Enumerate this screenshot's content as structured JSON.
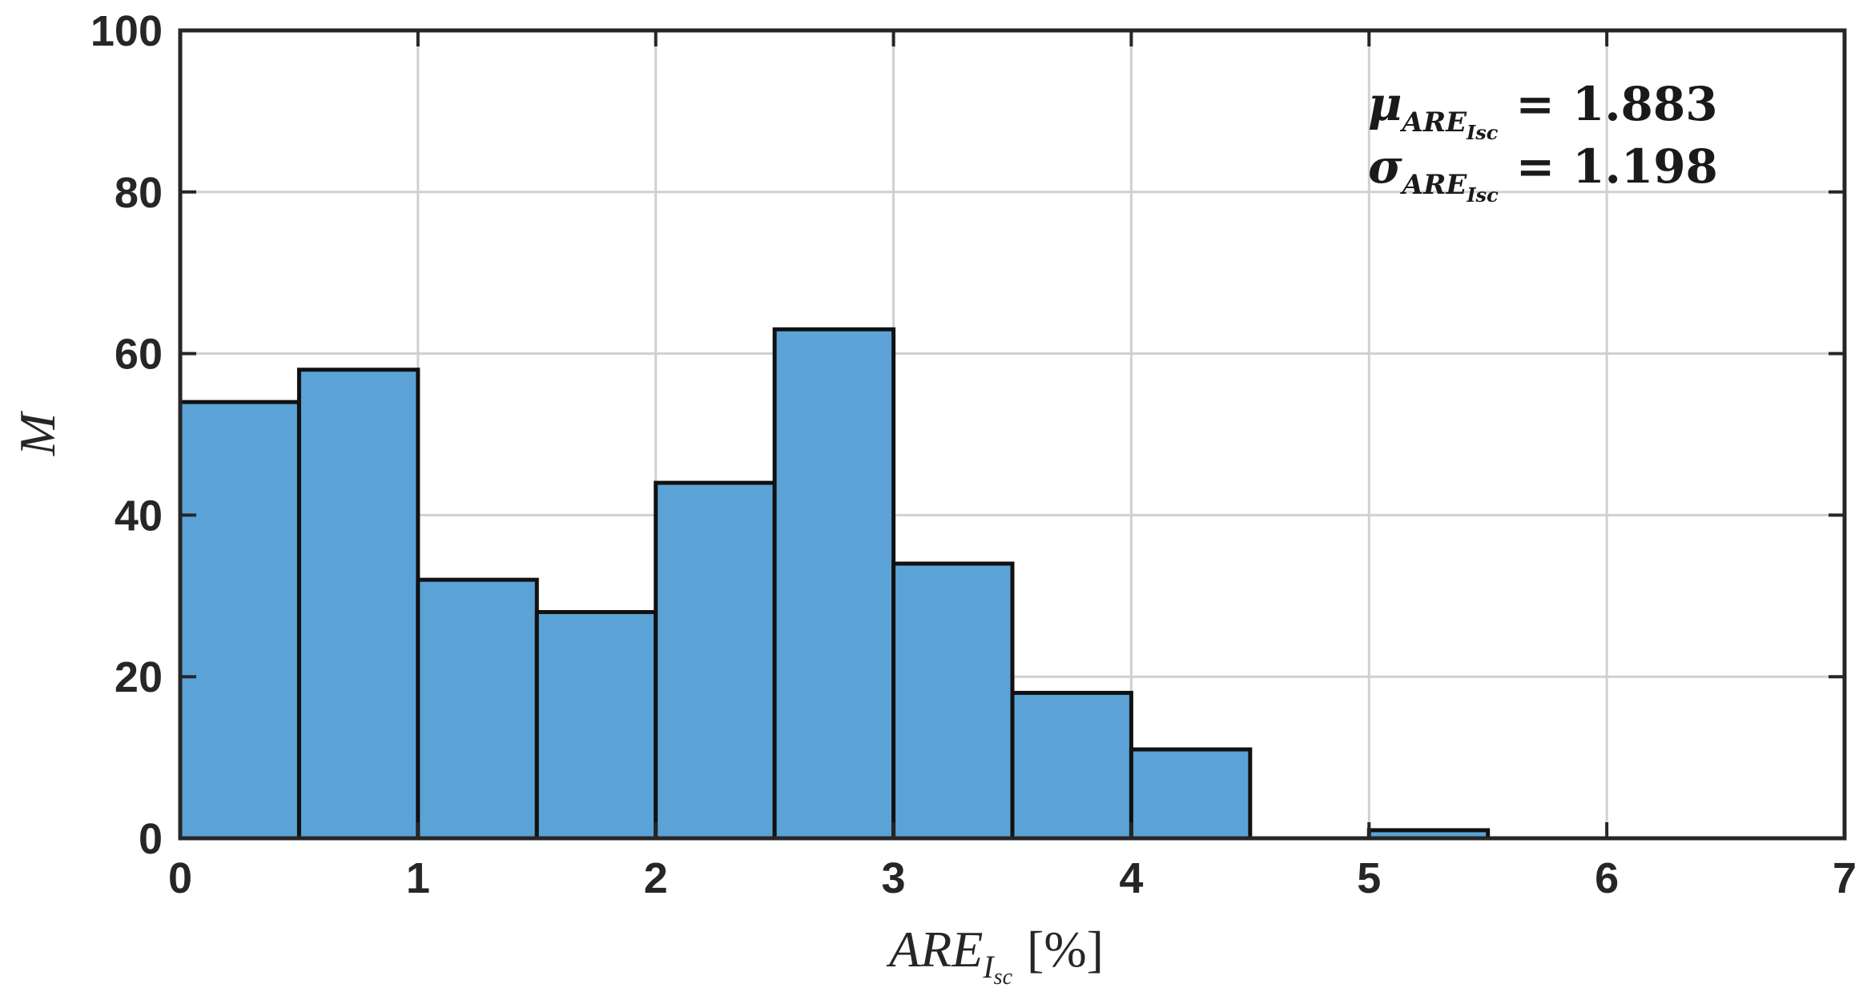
{
  "chart_data": {
    "type": "bar",
    "subtype": "histogram",
    "bin_edges": [
      0,
      0.5,
      1,
      1.5,
      2,
      2.5,
      3,
      3.5,
      4,
      4.5,
      5,
      5.5
    ],
    "values": [
      54,
      58,
      32,
      28,
      44,
      63,
      34,
      18,
      11,
      0,
      1
    ],
    "xlim": [
      0,
      7
    ],
    "ylim": [
      0,
      100
    ],
    "x_ticks": [
      0,
      1,
      2,
      3,
      4,
      5,
      6,
      7
    ],
    "y_ticks": [
      0,
      20,
      40,
      60,
      80,
      100
    ],
    "xlabel": {
      "main": "ARE",
      "sub": "I",
      "subsub": "sc",
      "unit": "[%]"
    },
    "ylabel": "M",
    "grid": true,
    "colors": {
      "bar_fill": "#5ba3d6",
      "bar_edge": "#111111",
      "grid": "#d0d0d0",
      "axes": "#262626"
    },
    "annotations": [
      {
        "symbol": "μ",
        "sub": "ARE",
        "subsub": "Isc",
        "equals": "=",
        "value": "1.883"
      },
      {
        "symbol": "σ",
        "sub": "ARE",
        "subsub": "Isc",
        "equals": "=",
        "value": "1.198"
      }
    ]
  }
}
